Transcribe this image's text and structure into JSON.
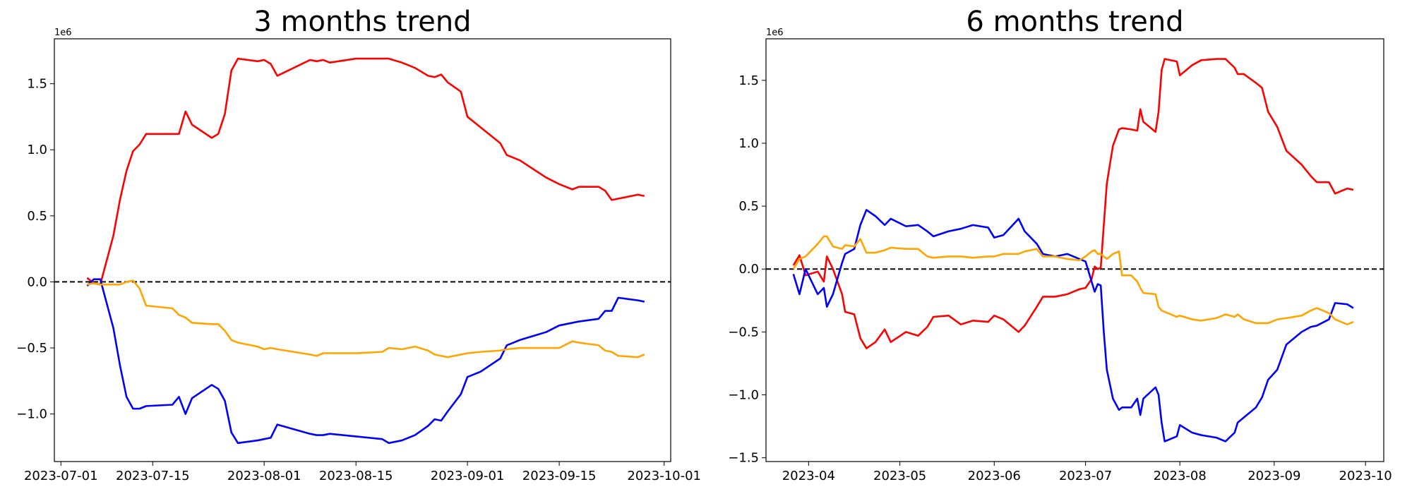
{
  "chart_data": [
    {
      "type": "line",
      "title": "3 months trend",
      "offset_text": "1e6",
      "x": [
        "2023-07-05",
        "2023-07-06",
        "2023-07-07",
        "2023-07-09",
        "2023-07-10",
        "2023-07-11",
        "2023-07-12",
        "2023-07-13",
        "2023-07-14",
        "2023-07-18",
        "2023-07-19",
        "2023-07-20",
        "2023-07-21",
        "2023-07-24",
        "2023-07-25",
        "2023-07-26",
        "2023-07-27",
        "2023-07-28",
        "2023-07-31",
        "2023-08-01",
        "2023-08-02",
        "2023-08-03",
        "2023-08-08",
        "2023-08-09",
        "2023-08-10",
        "2023-08-11",
        "2023-08-15",
        "2023-08-19",
        "2023-08-20",
        "2023-08-22",
        "2023-08-24",
        "2023-08-26",
        "2023-08-27",
        "2023-08-28",
        "2023-08-29",
        "2023-08-31",
        "2023-09-01",
        "2023-09-03",
        "2023-09-06",
        "2023-09-07",
        "2023-09-09",
        "2023-09-13",
        "2023-09-15",
        "2023-09-17",
        "2023-09-18",
        "2023-09-21",
        "2023-09-22",
        "2023-09-23",
        "2023-09-24",
        "2023-09-27",
        "2023-09-28"
      ],
      "series": [
        {
          "color": "#ff0000",
          "values": [
            0.03,
            -0.01,
            -0.02,
            0.35,
            0.62,
            0.84,
            0.99,
            1.04,
            1.12,
            1.12,
            1.12,
            1.29,
            1.19,
            1.09,
            1.12,
            1.27,
            1.6,
            1.69,
            1.67,
            1.68,
            1.65,
            1.56,
            1.68,
            1.67,
            1.68,
            1.66,
            1.69,
            1.69,
            1.69,
            1.66,
            1.62,
            1.56,
            1.55,
            1.57,
            1.51,
            1.44,
            1.25,
            1.17,
            1.05,
            0.96,
            0.92,
            0.79,
            0.74,
            0.7,
            0.72,
            0.72,
            0.69,
            0.62,
            0.63,
            0.66,
            0.65
          ]
        },
        {
          "color": "#0000ff",
          "values": [
            -0.03,
            0.02,
            0.02,
            -0.35,
            -0.63,
            -0.87,
            -0.96,
            -0.96,
            -0.94,
            -0.93,
            -0.87,
            -1.0,
            -0.88,
            -0.78,
            -0.81,
            -0.9,
            -1.14,
            -1.22,
            -1.2,
            -1.19,
            -1.18,
            -1.08,
            -1.15,
            -1.16,
            -1.16,
            -1.15,
            -1.17,
            -1.19,
            -1.22,
            -1.2,
            -1.16,
            -1.09,
            -1.04,
            -1.05,
            -0.98,
            -0.85,
            -0.72,
            -0.68,
            -0.58,
            -0.48,
            -0.44,
            -0.38,
            -0.33,
            -0.31,
            -0.3,
            -0.28,
            -0.22,
            -0.22,
            -0.12,
            -0.14,
            -0.15
          ]
        },
        {
          "color": "#ffa500",
          "values": [
            -0.02,
            -0.01,
            -0.02,
            -0.02,
            -0.02,
            0.0,
            0.01,
            -0.05,
            -0.18,
            -0.2,
            -0.25,
            -0.27,
            -0.31,
            -0.32,
            -0.32,
            -0.37,
            -0.44,
            -0.46,
            -0.49,
            -0.51,
            -0.5,
            -0.51,
            -0.55,
            -0.56,
            -0.54,
            -0.54,
            -0.54,
            -0.53,
            -0.5,
            -0.51,
            -0.49,
            -0.52,
            -0.55,
            -0.56,
            -0.57,
            -0.55,
            -0.54,
            -0.53,
            -0.52,
            -0.51,
            -0.5,
            -0.5,
            -0.5,
            -0.45,
            -0.46,
            -0.48,
            -0.52,
            -0.53,
            -0.56,
            -0.57,
            -0.55
          ]
        }
      ],
      "reference_line": 0,
      "xlim": [
        "2023-06-30",
        "2023-10-02"
      ],
      "xticks": [
        "2023-07-01",
        "2023-07-15",
        "2023-08-01",
        "2023-08-15",
        "2023-09-01",
        "2023-09-15",
        "2023-10-01"
      ],
      "ylim": [
        -1.36,
        1.84
      ],
      "yticks": [
        {
          "value": -1.0,
          "label": "−1.0"
        },
        {
          "value": -0.5,
          "label": "−0.5"
        },
        {
          "value": 0.0,
          "label": "0.0"
        },
        0.5,
        {
          "value": 1.0,
          "label": "1.0"
        },
        1.5
      ]
    },
    {
      "type": "line",
      "title": "6 months trend",
      "offset_text": "1e6",
      "x": [
        "2023-03-27",
        "2023-03-29",
        "2023-03-31",
        "2023-04-04",
        "2023-04-06",
        "2023-04-07",
        "2023-04-09",
        "2023-04-12",
        "2023-04-13",
        "2023-04-16",
        "2023-04-18",
        "2023-04-20",
        "2023-04-23",
        "2023-04-26",
        "2023-04-28",
        "2023-05-03",
        "2023-05-07",
        "2023-05-10",
        "2023-05-12",
        "2023-05-17",
        "2023-05-21",
        "2023-05-25",
        "2023-05-30",
        "2023-06-01",
        "2023-06-04",
        "2023-06-09",
        "2023-06-11",
        "2023-06-15",
        "2023-06-17",
        "2023-06-21",
        "2023-06-25",
        "2023-06-29",
        "2023-07-01",
        "2023-07-03",
        "2023-07-04",
        "2023-07-05",
        "2023-07-06",
        "2023-07-07",
        "2023-07-08",
        "2023-07-10",
        "2023-07-12",
        "2023-07-13",
        "2023-07-16",
        "2023-07-18",
        "2023-07-19",
        "2023-07-20",
        "2023-07-24",
        "2023-07-25",
        "2023-07-26",
        "2023-07-27",
        "2023-07-31",
        "2023-08-01",
        "2023-08-05",
        "2023-08-08",
        "2023-08-13",
        "2023-08-16",
        "2023-08-19",
        "2023-08-20",
        "2023-08-22",
        "2023-08-26",
        "2023-08-28",
        "2023-08-30",
        "2023-09-02",
        "2023-09-05",
        "2023-09-10",
        "2023-09-13",
        "2023-09-15",
        "2023-09-19",
        "2023-09-21",
        "2023-09-25",
        "2023-09-27"
      ],
      "series": [
        {
          "color": "#ff0000",
          "values": [
            0.03,
            0.11,
            -0.05,
            -0.02,
            -0.1,
            0.1,
            0.0,
            -0.2,
            -0.34,
            -0.36,
            -0.55,
            -0.63,
            -0.58,
            -0.48,
            -0.58,
            -0.5,
            -0.53,
            -0.46,
            -0.38,
            -0.37,
            -0.44,
            -0.41,
            -0.42,
            -0.37,
            -0.4,
            -0.5,
            -0.45,
            -0.3,
            -0.22,
            -0.22,
            -0.2,
            -0.16,
            -0.15,
            -0.08,
            0.02,
            0.0,
            0.01,
            0.35,
            0.68,
            0.98,
            1.11,
            1.12,
            1.11,
            1.1,
            1.27,
            1.17,
            1.09,
            1.25,
            1.58,
            1.67,
            1.65,
            1.54,
            1.62,
            1.66,
            1.67,
            1.67,
            1.6,
            1.55,
            1.55,
            1.48,
            1.44,
            1.25,
            1.13,
            0.94,
            0.83,
            0.74,
            0.69,
            0.69,
            0.6,
            0.64,
            0.63
          ]
        },
        {
          "color": "#0000ff",
          "values": [
            -0.04,
            -0.2,
            0.0,
            -0.2,
            -0.15,
            -0.3,
            -0.2,
            0.05,
            0.12,
            0.16,
            0.35,
            0.47,
            0.42,
            0.35,
            0.4,
            0.34,
            0.35,
            0.3,
            0.26,
            0.3,
            0.32,
            0.35,
            0.33,
            0.25,
            0.27,
            0.4,
            0.3,
            0.2,
            0.12,
            0.1,
            0.12,
            0.08,
            0.06,
            -0.1,
            -0.18,
            -0.12,
            -0.13,
            -0.5,
            -0.8,
            -1.03,
            -1.12,
            -1.1,
            -1.1,
            -1.03,
            -1.16,
            -1.03,
            -0.94,
            -1.0,
            -1.22,
            -1.37,
            -1.33,
            -1.24,
            -1.3,
            -1.32,
            -1.34,
            -1.37,
            -1.3,
            -1.22,
            -1.18,
            -1.1,
            -1.02,
            -0.88,
            -0.8,
            -0.6,
            -0.5,
            -0.46,
            -0.45,
            -0.4,
            -0.27,
            -0.28,
            -0.31
          ]
        },
        {
          "color": "#ffa500",
          "values": [
            0.0,
            0.08,
            0.1,
            0.2,
            0.26,
            0.26,
            0.18,
            0.16,
            0.19,
            0.18,
            0.24,
            0.13,
            0.13,
            0.15,
            0.17,
            0.16,
            0.16,
            0.1,
            0.09,
            0.1,
            0.1,
            0.09,
            0.1,
            0.1,
            0.12,
            0.12,
            0.14,
            0.16,
            0.1,
            0.1,
            0.08,
            0.07,
            0.1,
            0.14,
            0.15,
            0.12,
            0.12,
            0.1,
            0.08,
            0.12,
            0.14,
            -0.05,
            -0.05,
            -0.1,
            -0.15,
            -0.19,
            -0.2,
            -0.3,
            -0.33,
            -0.34,
            -0.38,
            -0.37,
            -0.4,
            -0.41,
            -0.39,
            -0.36,
            -0.38,
            -0.36,
            -0.4,
            -0.43,
            -0.43,
            -0.43,
            -0.4,
            -0.39,
            -0.37,
            -0.33,
            -0.31,
            -0.35,
            -0.4,
            -0.44,
            -0.42
          ]
        }
      ],
      "reference_line": 0,
      "xlim": [
        "2023-03-18",
        "2023-10-07"
      ],
      "xticks": [
        "2023-04",
        "2023-05",
        "2023-06",
        "2023-07",
        "2023-08",
        "2023-09",
        "2023-10"
      ],
      "ylim": [
        -1.53,
        1.83
      ],
      "yticks": [
        {
          "value": -1.5,
          "label": "−1.5"
        },
        {
          "value": -1.0,
          "label": "−1.0"
        },
        {
          "value": -0.5,
          "label": "−0.5"
        },
        {
          "value": 0.0,
          "label": "0.0"
        },
        0.5,
        {
          "value": 1.0,
          "label": "1.0"
        },
        1.5
      ]
    }
  ]
}
